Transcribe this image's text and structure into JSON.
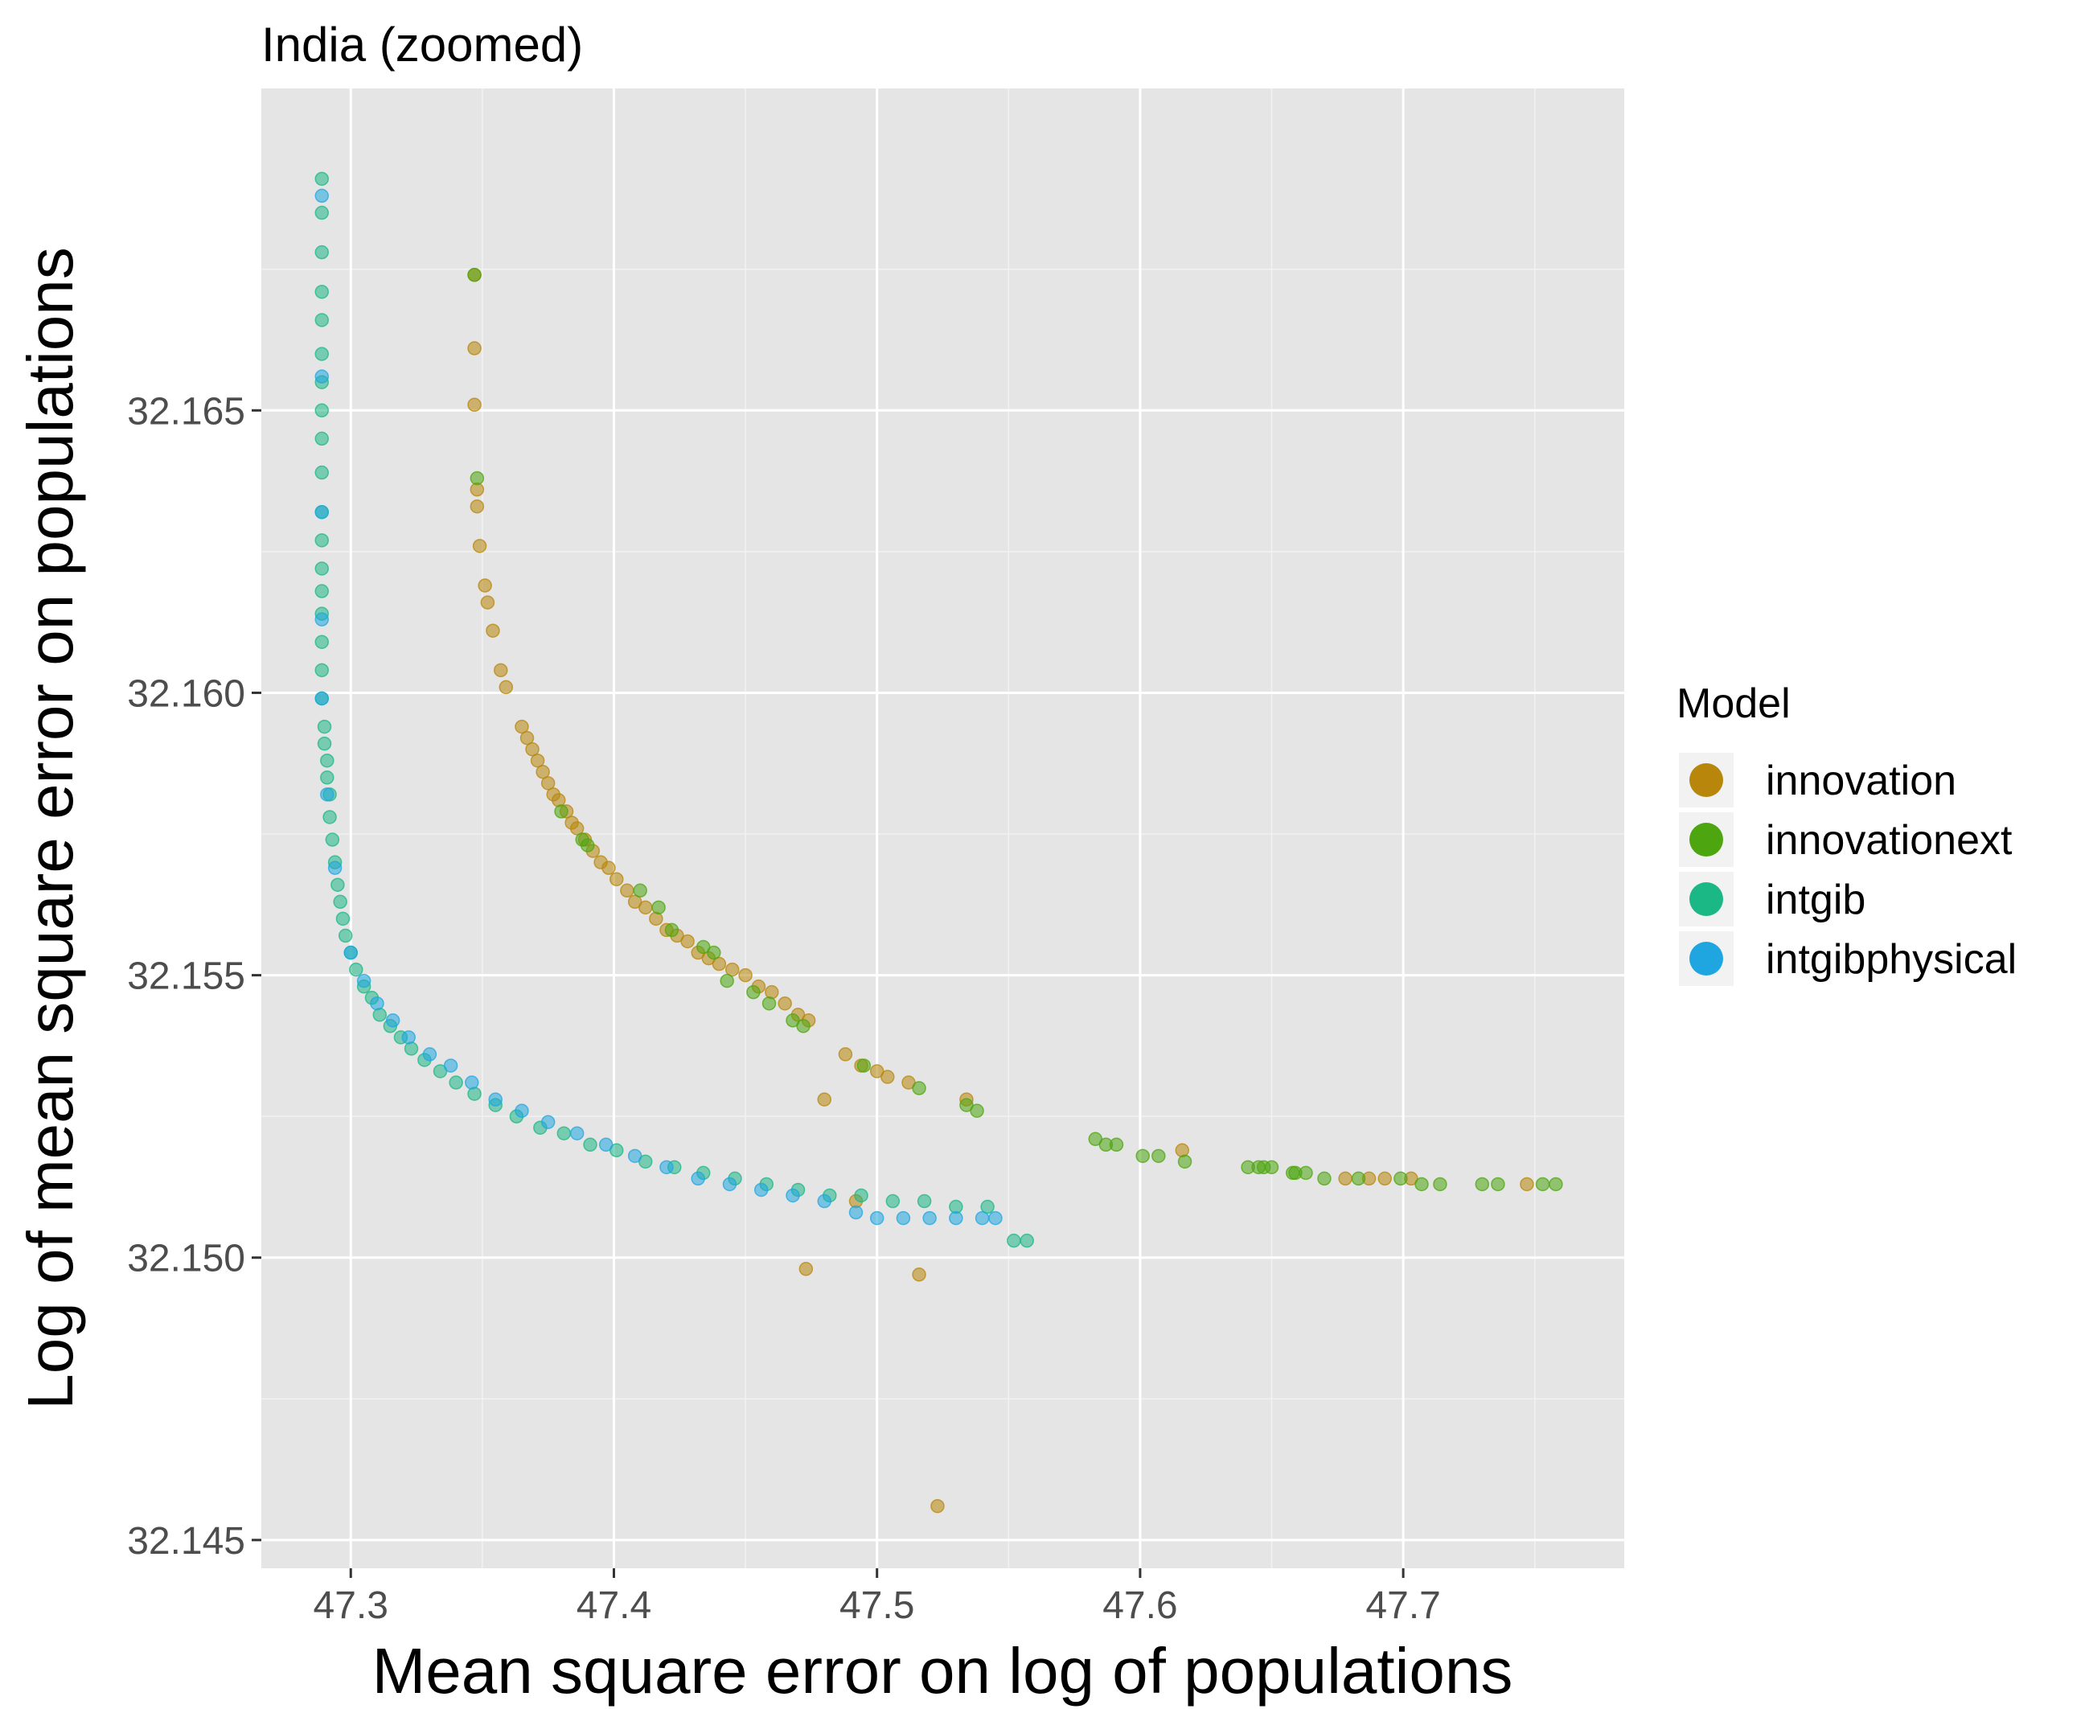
{
  "chart_data": {
    "type": "scatter",
    "title": "India (zoomed)",
    "xlabel": "Mean square error on log of populations",
    "ylabel": "Log of mean square error on populations",
    "xlim": [
      47.266,
      47.784
    ],
    "ylim": [
      32.1445,
      32.1707
    ],
    "x_ticks": [
      47.3,
      47.4,
      47.5,
      47.6,
      47.7
    ],
    "x_tick_labels": [
      "47.3",
      "47.4",
      "47.5",
      "47.6",
      "47.7"
    ],
    "y_ticks": [
      32.145,
      32.15,
      32.155,
      32.16,
      32.165
    ],
    "y_tick_labels": [
      "32.145",
      "32.150",
      "32.155",
      "32.160",
      "32.165"
    ],
    "grid": true,
    "legend": {
      "title": "Model",
      "position": "right"
    },
    "series": [
      {
        "name": "innovation",
        "color": "#B8860B",
        "points": [
          [
            47.347,
            32.1674
          ],
          [
            47.347,
            32.1661
          ],
          [
            47.347,
            32.1651
          ],
          [
            47.348,
            32.1636
          ],
          [
            47.348,
            32.1633
          ],
          [
            47.349,
            32.1626
          ],
          [
            47.351,
            32.1619
          ],
          [
            47.352,
            32.1616
          ],
          [
            47.354,
            32.1611
          ],
          [
            47.357,
            32.1604
          ],
          [
            47.359,
            32.1601
          ],
          [
            47.365,
            32.1594
          ],
          [
            47.367,
            32.1592
          ],
          [
            47.369,
            32.159
          ],
          [
            47.371,
            32.1588
          ],
          [
            47.373,
            32.1586
          ],
          [
            47.375,
            32.1584
          ],
          [
            47.377,
            32.1582
          ],
          [
            47.379,
            32.1581
          ],
          [
            47.382,
            32.1579
          ],
          [
            47.384,
            32.1577
          ],
          [
            47.386,
            32.1576
          ],
          [
            47.389,
            32.1574
          ],
          [
            47.392,
            32.1572
          ],
          [
            47.395,
            32.157
          ],
          [
            47.398,
            32.1569
          ],
          [
            47.401,
            32.1567
          ],
          [
            47.405,
            32.1565
          ],
          [
            47.408,
            32.1563
          ],
          [
            47.412,
            32.1562
          ],
          [
            47.416,
            32.156
          ],
          [
            47.42,
            32.1558
          ],
          [
            47.424,
            32.1557
          ],
          [
            47.428,
            32.1556
          ],
          [
            47.432,
            32.1554
          ],
          [
            47.436,
            32.1553
          ],
          [
            47.44,
            32.1552
          ],
          [
            47.445,
            32.1551
          ],
          [
            47.45,
            32.155
          ],
          [
            47.455,
            32.1548
          ],
          [
            47.46,
            32.1547
          ],
          [
            47.465,
            32.1545
          ],
          [
            47.47,
            32.1543
          ],
          [
            47.474,
            32.1542
          ],
          [
            47.488,
            32.1536
          ],
          [
            47.494,
            32.1534
          ],
          [
            47.5,
            32.1533
          ],
          [
            47.504,
            32.1532
          ],
          [
            47.512,
            32.1531
          ],
          [
            47.534,
            32.1528
          ],
          [
            47.48,
            32.1528
          ],
          [
            47.492,
            32.151
          ],
          [
            47.473,
            32.1498
          ],
          [
            47.516,
            32.1497
          ],
          [
            47.523,
            32.1456
          ],
          [
            47.616,
            32.1519
          ],
          [
            47.678,
            32.1514
          ],
          [
            47.687,
            32.1514
          ],
          [
            47.693,
            32.1514
          ],
          [
            47.703,
            32.1514
          ],
          [
            47.747,
            32.1513
          ]
        ]
      },
      {
        "name": "innovationext",
        "color": "#4DA60F",
        "points": [
          [
            47.347,
            32.1674
          ],
          [
            47.348,
            32.1638
          ],
          [
            47.38,
            32.1579
          ],
          [
            47.388,
            32.1574
          ],
          [
            47.39,
            32.1573
          ],
          [
            47.41,
            32.1565
          ],
          [
            47.417,
            32.1562
          ],
          [
            47.422,
            32.1558
          ],
          [
            47.434,
            32.1555
          ],
          [
            47.438,
            32.1554
          ],
          [
            47.443,
            32.1549
          ],
          [
            47.453,
            32.1547
          ],
          [
            47.459,
            32.1545
          ],
          [
            47.468,
            32.1542
          ],
          [
            47.472,
            32.1541
          ],
          [
            47.495,
            32.1534
          ],
          [
            47.516,
            32.153
          ],
          [
            47.534,
            32.1527
          ],
          [
            47.538,
            32.1526
          ],
          [
            47.583,
            32.1521
          ],
          [
            47.587,
            32.152
          ],
          [
            47.591,
            32.152
          ],
          [
            47.601,
            32.1518
          ],
          [
            47.607,
            32.1518
          ],
          [
            47.617,
            32.1517
          ],
          [
            47.641,
            32.1516
          ],
          [
            47.645,
            32.1516
          ],
          [
            47.647,
            32.1516
          ],
          [
            47.65,
            32.1516
          ],
          [
            47.658,
            32.1515
          ],
          [
            47.659,
            32.1515
          ],
          [
            47.663,
            32.1515
          ],
          [
            47.67,
            32.1514
          ],
          [
            47.683,
            32.1514
          ],
          [
            47.699,
            32.1514
          ],
          [
            47.707,
            32.1513
          ],
          [
            47.714,
            32.1513
          ],
          [
            47.73,
            32.1513
          ],
          [
            47.736,
            32.1513
          ],
          [
            47.753,
            32.1513
          ],
          [
            47.758,
            32.1513
          ]
        ]
      },
      {
        "name": "intgib",
        "color": "#1BB785",
        "points": [
          [
            47.289,
            32.1691
          ],
          [
            47.289,
            32.1685
          ],
          [
            47.289,
            32.1678
          ],
          [
            47.289,
            32.1671
          ],
          [
            47.289,
            32.1666
          ],
          [
            47.289,
            32.166
          ],
          [
            47.289,
            32.1655
          ],
          [
            47.289,
            32.165
          ],
          [
            47.289,
            32.1645
          ],
          [
            47.289,
            32.1639
          ],
          [
            47.289,
            32.1632
          ],
          [
            47.289,
            32.1627
          ],
          [
            47.289,
            32.1622
          ],
          [
            47.289,
            32.1618
          ],
          [
            47.289,
            32.1614
          ],
          [
            47.289,
            32.1609
          ],
          [
            47.289,
            32.1604
          ],
          [
            47.289,
            32.1599
          ],
          [
            47.29,
            32.1594
          ],
          [
            47.29,
            32.1591
          ],
          [
            47.291,
            32.1588
          ],
          [
            47.291,
            32.1585
          ],
          [
            47.292,
            32.1582
          ],
          [
            47.292,
            32.1578
          ],
          [
            47.293,
            32.1574
          ],
          [
            47.294,
            32.157
          ],
          [
            47.295,
            32.1566
          ],
          [
            47.296,
            32.1563
          ],
          [
            47.297,
            32.156
          ],
          [
            47.298,
            32.1557
          ],
          [
            47.3,
            32.1554
          ],
          [
            47.302,
            32.1551
          ],
          [
            47.305,
            32.1548
          ],
          [
            47.308,
            32.1546
          ],
          [
            47.311,
            32.1543
          ],
          [
            47.315,
            32.1541
          ],
          [
            47.319,
            32.1539
          ],
          [
            47.323,
            32.1537
          ],
          [
            47.328,
            32.1535
          ],
          [
            47.334,
            32.1533
          ],
          [
            47.34,
            32.1531
          ],
          [
            47.347,
            32.1529
          ],
          [
            47.355,
            32.1527
          ],
          [
            47.363,
            32.1525
          ],
          [
            47.372,
            32.1523
          ],
          [
            47.381,
            32.1522
          ],
          [
            47.391,
            32.152
          ],
          [
            47.401,
            32.1519
          ],
          [
            47.412,
            32.1517
          ],
          [
            47.423,
            32.1516
          ],
          [
            47.434,
            32.1515
          ],
          [
            47.446,
            32.1514
          ],
          [
            47.458,
            32.1513
          ],
          [
            47.47,
            32.1512
          ],
          [
            47.482,
            32.1511
          ],
          [
            47.494,
            32.1511
          ],
          [
            47.506,
            32.151
          ],
          [
            47.518,
            32.151
          ],
          [
            47.53,
            32.1509
          ],
          [
            47.542,
            32.1509
          ],
          [
            47.552,
            32.1503
          ],
          [
            47.557,
            32.1503
          ]
        ]
      },
      {
        "name": "intgibphysical",
        "color": "#1FA6E0",
        "points": [
          [
            47.289,
            32.1688
          ],
          [
            47.289,
            32.1656
          ],
          [
            47.289,
            32.1632
          ],
          [
            47.289,
            32.1613
          ],
          [
            47.289,
            32.1599
          ],
          [
            47.291,
            32.1582
          ],
          [
            47.294,
            32.1569
          ],
          [
            47.3,
            32.1554
          ],
          [
            47.305,
            32.1549
          ],
          [
            47.31,
            32.1545
          ],
          [
            47.316,
            32.1542
          ],
          [
            47.322,
            32.1539
          ],
          [
            47.33,
            32.1536
          ],
          [
            47.338,
            32.1534
          ],
          [
            47.346,
            32.1531
          ],
          [
            47.355,
            32.1528
          ],
          [
            47.365,
            32.1526
          ],
          [
            47.375,
            32.1524
          ],
          [
            47.386,
            32.1522
          ],
          [
            47.397,
            32.152
          ],
          [
            47.408,
            32.1518
          ],
          [
            47.42,
            32.1516
          ],
          [
            47.432,
            32.1514
          ],
          [
            47.444,
            32.1513
          ],
          [
            47.456,
            32.1512
          ],
          [
            47.468,
            32.1511
          ],
          [
            47.48,
            32.151
          ],
          [
            47.492,
            32.1508
          ],
          [
            47.5,
            32.1507
          ],
          [
            47.51,
            32.1507
          ],
          [
            47.52,
            32.1507
          ],
          [
            47.53,
            32.1507
          ],
          [
            47.54,
            32.1507
          ],
          [
            47.545,
            32.1507
          ]
        ]
      }
    ]
  }
}
